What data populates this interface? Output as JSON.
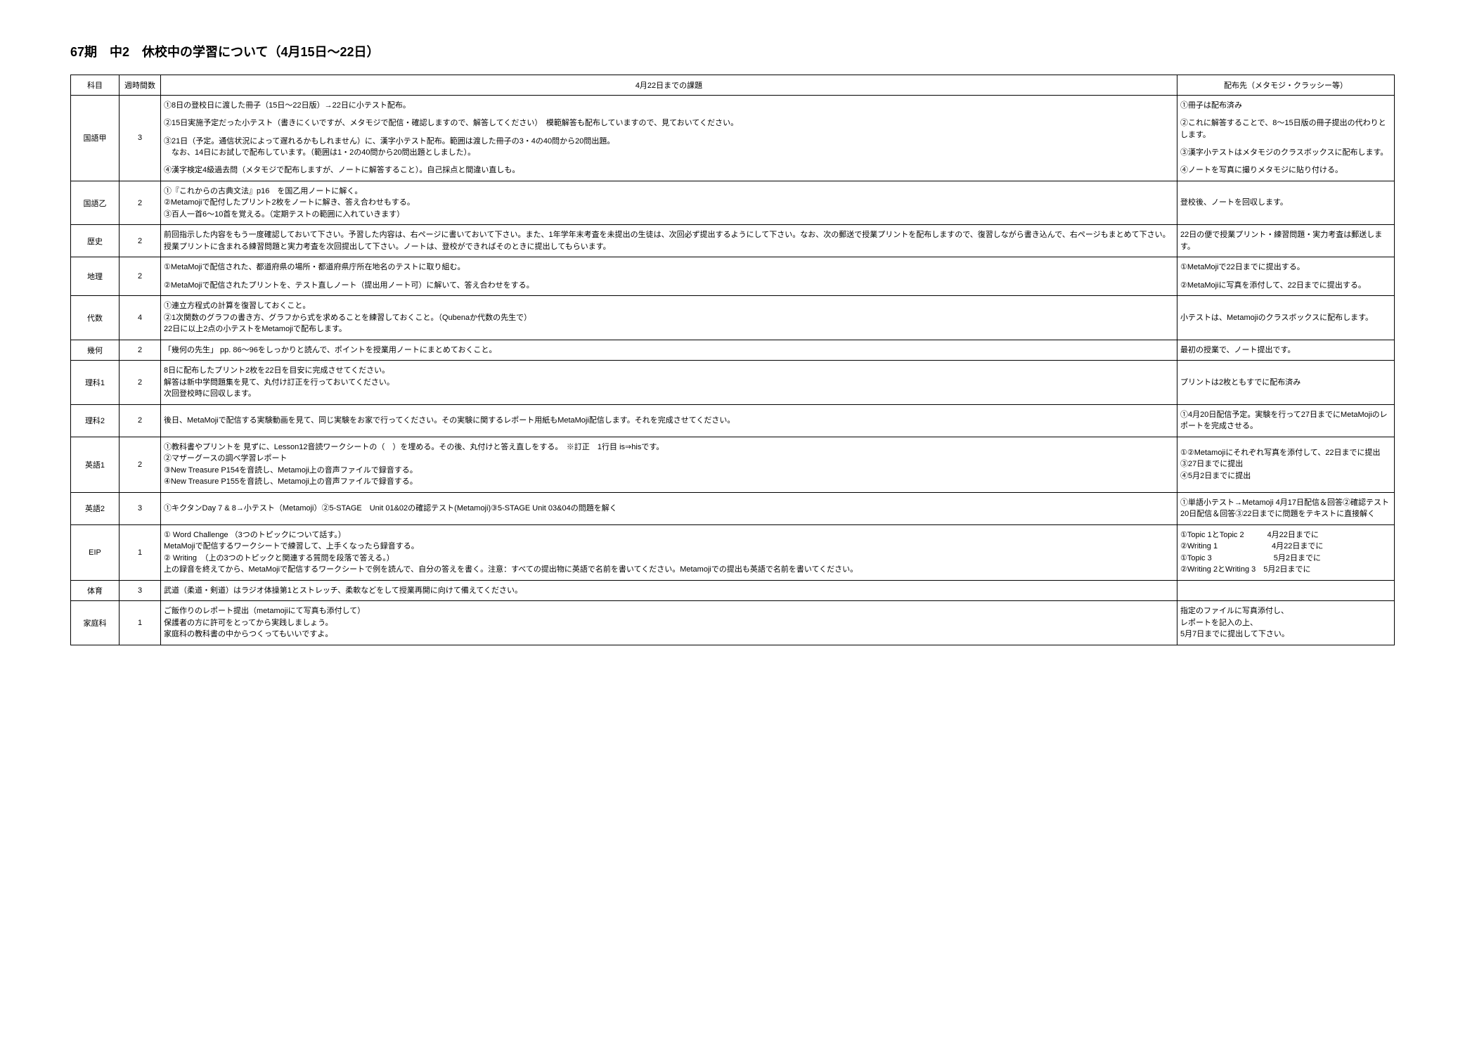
{
  "title": "67期　中2　休校中の学習について（4月15日～22日）",
  "headers": {
    "subject": "科目",
    "hours": "週時間数",
    "homework": "4月22日までの課題",
    "dist": "配布先（メタモジ・クラッシー等）"
  },
  "rows": [
    {
      "subject": "国語甲",
      "hours": "3",
      "homework": "①8日の登校日に渡した冊子（15日～22日版）→22日に小テスト配布。\n\n②15日実施予定だった小テスト（書きにくいですが、メタモジで配信・確認しますので、解答してください）　模範解答も配布していますので、見ておいてください。\n\n③21日（予定。通信状況によって遅れるかもしれません）に、漢字小テスト配布。範囲は渡した冊子の3・4の40問から20問出題。\n　なお、14日にお試しで配布しています。（範囲は1・2の40問から20問出題としました）。\n\n④漢字検定4級過去問（メタモジで配布しますが、ノートに解答すること）。自己採点と間違い直しも。",
      "dist": "①冊子は配布済み\n\n②これに解答することで、8～15日版の冊子提出の代わりとします。\n\n③漢字小テストはメタモジのクラスボックスに配布します。\n\n④ノートを写真に撮りメタモジに貼り付ける。"
    },
    {
      "subject": "国語乙",
      "hours": "2",
      "homework": "①『これからの古典文法』p16　を国乙用ノートに解く。\n②Metamojiで配付したプリント2枚をノートに解き、答え合わせもする。\n③百人一首6～10首を覚える。（定期テストの範囲に入れていきます）",
      "dist": "登校後、ノートを回収します。"
    },
    {
      "subject": "歴史",
      "hours": "2",
      "homework": "前回指示した内容をもう一度確認しておいて下さい。予習した内容は、右ページに書いておいて下さい。また、1年学年末考査を未提出の生徒は、次回必ず提出するようにして下さい。なお、次の郵送で授業プリントを配布しますので、復習しながら書き込んで、右ページもまとめて下さい。授業プリントに含まれる練習問題と実力考査を次回提出して下さい。ノートは、登校ができればそのときに提出してもらいます。",
      "dist": "22日の便で授業プリント・練習問題・実力考査は郵送します。"
    },
    {
      "subject": "地理",
      "hours": "2",
      "homework": "①MetaMojiで配信された、都道府県の場所・都道府県庁所在地名のテストに取り組む。\n\n②MetaMojiで配信されたプリントを、テスト直しノート（提出用ノート可）に解いて、答え合わせをする。",
      "dist": "①MetaMojiで22日までに提出する。\n\n②MetaMojiに写真を添付して、22日までに提出する。"
    },
    {
      "subject": "代数",
      "hours": "4",
      "homework": "①連立方程式の計算を復習しておくこと。\n②1次関数のグラフの書き方、グラフから式を求めることを練習しておくこと。（Qubenaか代数の先生で）\n22日に以上2点の小テストをMetamojiで配布します。",
      "dist": "小テストは、Metamojiのクラスボックスに配布します。"
    },
    {
      "subject": "幾何",
      "hours": "2",
      "homework": "「幾何の先生」 pp. 86～96をしっかりと読んで、ポイントを授業用ノートにまとめておくこと。",
      "dist": "最初の授業で、ノート提出です。"
    },
    {
      "subject": "理科1",
      "hours": "2",
      "homework": "8日に配布したプリント2枚を22日を目安に完成させてください。\n解答は新中学問題集を見て、丸付け訂正を行っておいてください。\n次回登校時に回収します。",
      "dist": "プリントは2枚ともすでに配布済み"
    },
    {
      "subject": "理科2",
      "hours": "2",
      "homework": "後日、MetaMojiで配信する実験動画を見て、同じ実験をお家で行ってください。その実験に関するレポート用紙もMetaMoji配信します。それを完成させてください。",
      "dist": "①4月20日配信予定。実験を行って27日までにMetaMojiのレポートを完成させる。"
    },
    {
      "subject": "英語1",
      "hours": "2",
      "homework": "①教科書やプリントを 見ずに、Lesson12音読ワークシートの（　）を埋める。その後、丸付けと答え直しをする。　※訂正　1行目 is⇒hisです。\n②マザーグースの調べ学習レポート\n③New Treasure P154を音読し、Metamoji上の音声ファイルで録音する。\n④New Treasure P155を音読し、Metamoji上の音声ファイルで録音する。",
      "dist": "①②Metamojiにそれぞれ写真を添付して、22日までに提出\n③27日までに提出\n④5月2日までに提出"
    },
    {
      "subject": "英語2",
      "hours": "3",
      "homework": "①キクタンDay 7 & 8→小テスト（Metamoji）②5-STAGE　Unit 01&02の確認テスト(Metamoji)③5-STAGE Unit 03&04の問題を解く",
      "dist": "①単語小テスト→Metamoji 4月17日配信＆回答②確認テスト20日配信＆回答③22日までに問題をテキストに直接解く"
    },
    {
      "subject": "EIP",
      "hours": "1",
      "homework": "① Word Challenge （3つのトピックについて話す。）\nMetaMojiで配信するワークシートで練習して、上手くなったら録音する。\n② Writing　（上の3つのトピックと関連する質問を段落で答える。）\n上の録音を終えてから、MetaMojiで配信するワークシートで例を読んで、自分の答えを書く。注意：すべての提出物に英語で名前を書いてください。Metamojiでの提出も英語で名前を書いてください。",
      "dist": "①Topic 1とTopic 2　　　4月22日までに\n②Writing 1　　　　　　　4月22日までに\n①Topic 3　　　　　　　　5月2日までに\n②Writing 2とWriting 3　5月2日までに"
    },
    {
      "subject": "体育",
      "hours": "3",
      "homework": "武道（柔道・剣道）はラジオ体操第1とストレッチ、柔軟などをして授業再開に向けて備えてください。",
      "dist": ""
    },
    {
      "subject": "家庭科",
      "hours": "1",
      "homework": "ご飯作りのレポート提出（metamojiにて写真も添付して）\n保護者の方に許可をとってから実践しましょう。\n家庭科の教科書の中からつくってもいいですよ。",
      "dist": "指定のファイルに写真添付し、\nレポートを記入の上、\n5月7日までに提出して下さい。"
    }
  ]
}
